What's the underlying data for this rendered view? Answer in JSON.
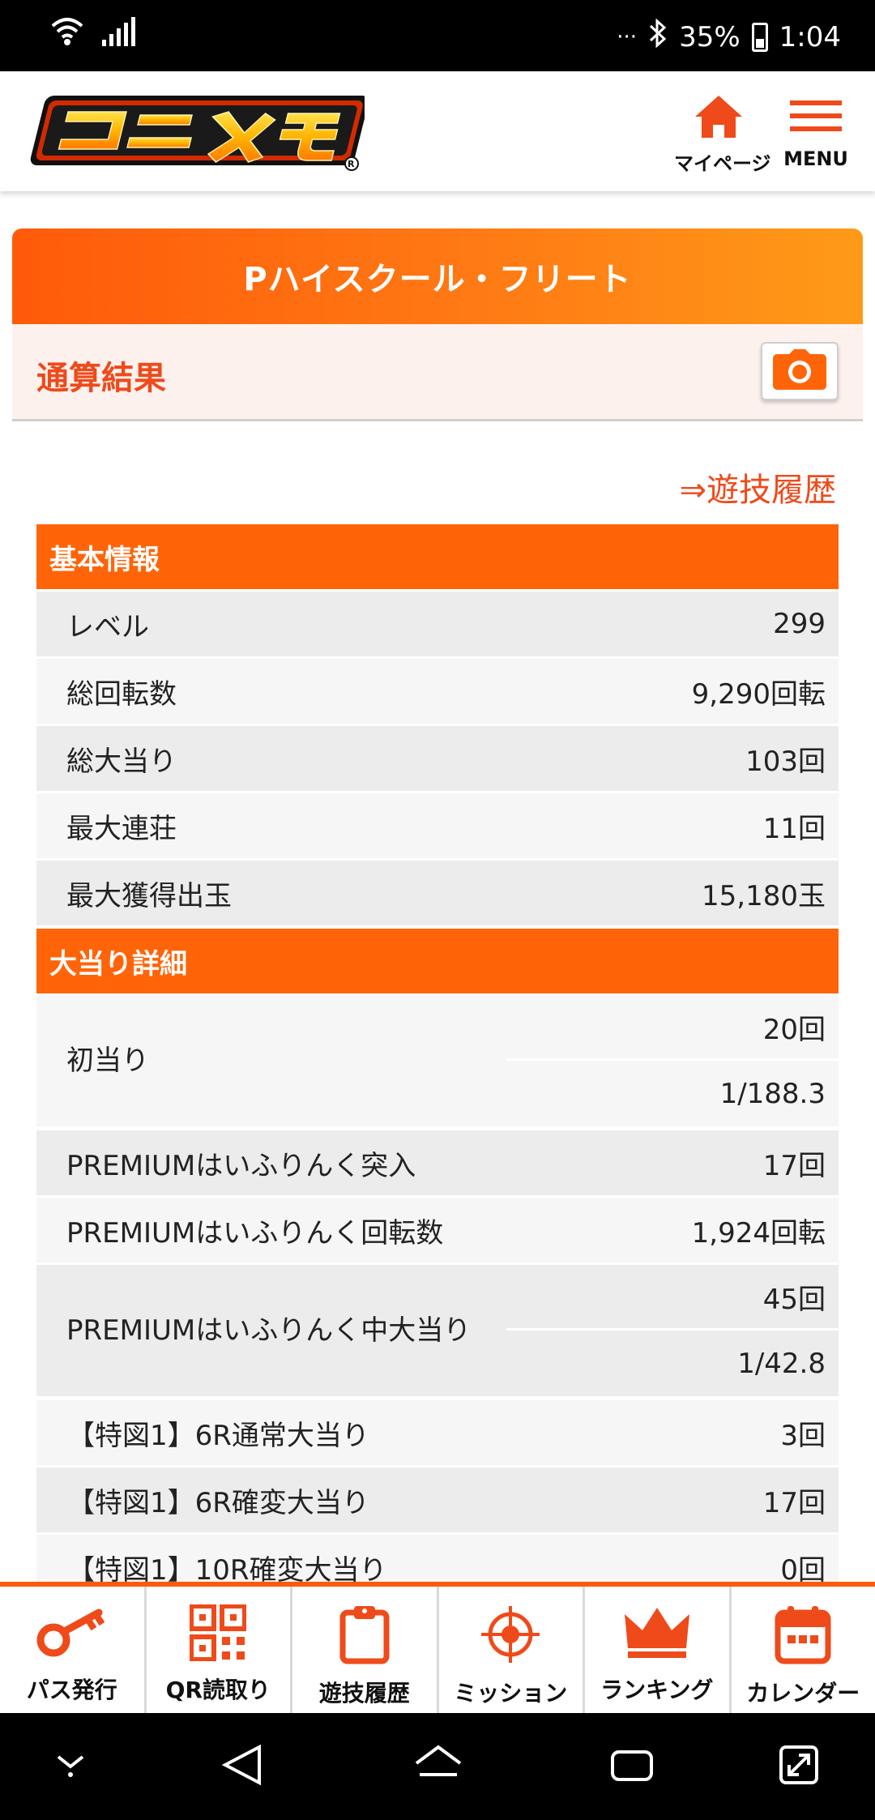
{
  "status_bar": {
    "battery": "35%",
    "time": "1:04",
    "dots": "···"
  },
  "header": {
    "mypage_label": "マイページ",
    "menu_label": "MENU"
  },
  "title": "Pハイスクール・フリート",
  "subheader": "通算結果",
  "history_link": "⇒遊技履歴",
  "sections": {
    "basic": {
      "heading": "基本情報",
      "rows": [
        {
          "label": "レベル",
          "value": "299"
        },
        {
          "label": "総回転数",
          "value": "9,290回転"
        },
        {
          "label": "総大当り",
          "value": "103回"
        },
        {
          "label": "最大連荘",
          "value": "11回"
        },
        {
          "label": "最大獲得出玉",
          "value": "15,180玉"
        }
      ]
    },
    "detail": {
      "heading": "大当り詳細",
      "first_hit": {
        "label": "初当り",
        "value1": "20回",
        "value2": "1/188.3"
      },
      "premium_entry": {
        "label": "PREMIUMはいふりんく突入",
        "value": "17回"
      },
      "premium_spins": {
        "label": "PREMIUMはいふりんく回転数",
        "value": "1,924回転"
      },
      "premium_hits": {
        "label": "PREMIUMはいふりんく中大当り",
        "value1": "45回",
        "value2": "1/42.8"
      },
      "rows": [
        {
          "label": "【特図1】6R通常大当り",
          "value": "3回"
        },
        {
          "label": "【特図1】6R確変大当り",
          "value": "17回"
        },
        {
          "label": "【特図1】10R確変大当り",
          "value": "0回"
        }
      ]
    }
  },
  "bottom_nav": [
    {
      "label": "パス発行",
      "icon": "key-icon"
    },
    {
      "label": "QR読取り",
      "icon": "qr-icon"
    },
    {
      "label": "遊技履歴",
      "icon": "clipboard-icon"
    },
    {
      "label": "ミッション",
      "icon": "target-icon"
    },
    {
      "label": "ランキング",
      "icon": "crown-icon"
    },
    {
      "label": "カレンダー",
      "icon": "calendar-icon"
    }
  ],
  "colors": {
    "accent": "#FF6508",
    "text_accent": "#EF4A1A",
    "sub_bg": "#FDF1EE"
  }
}
